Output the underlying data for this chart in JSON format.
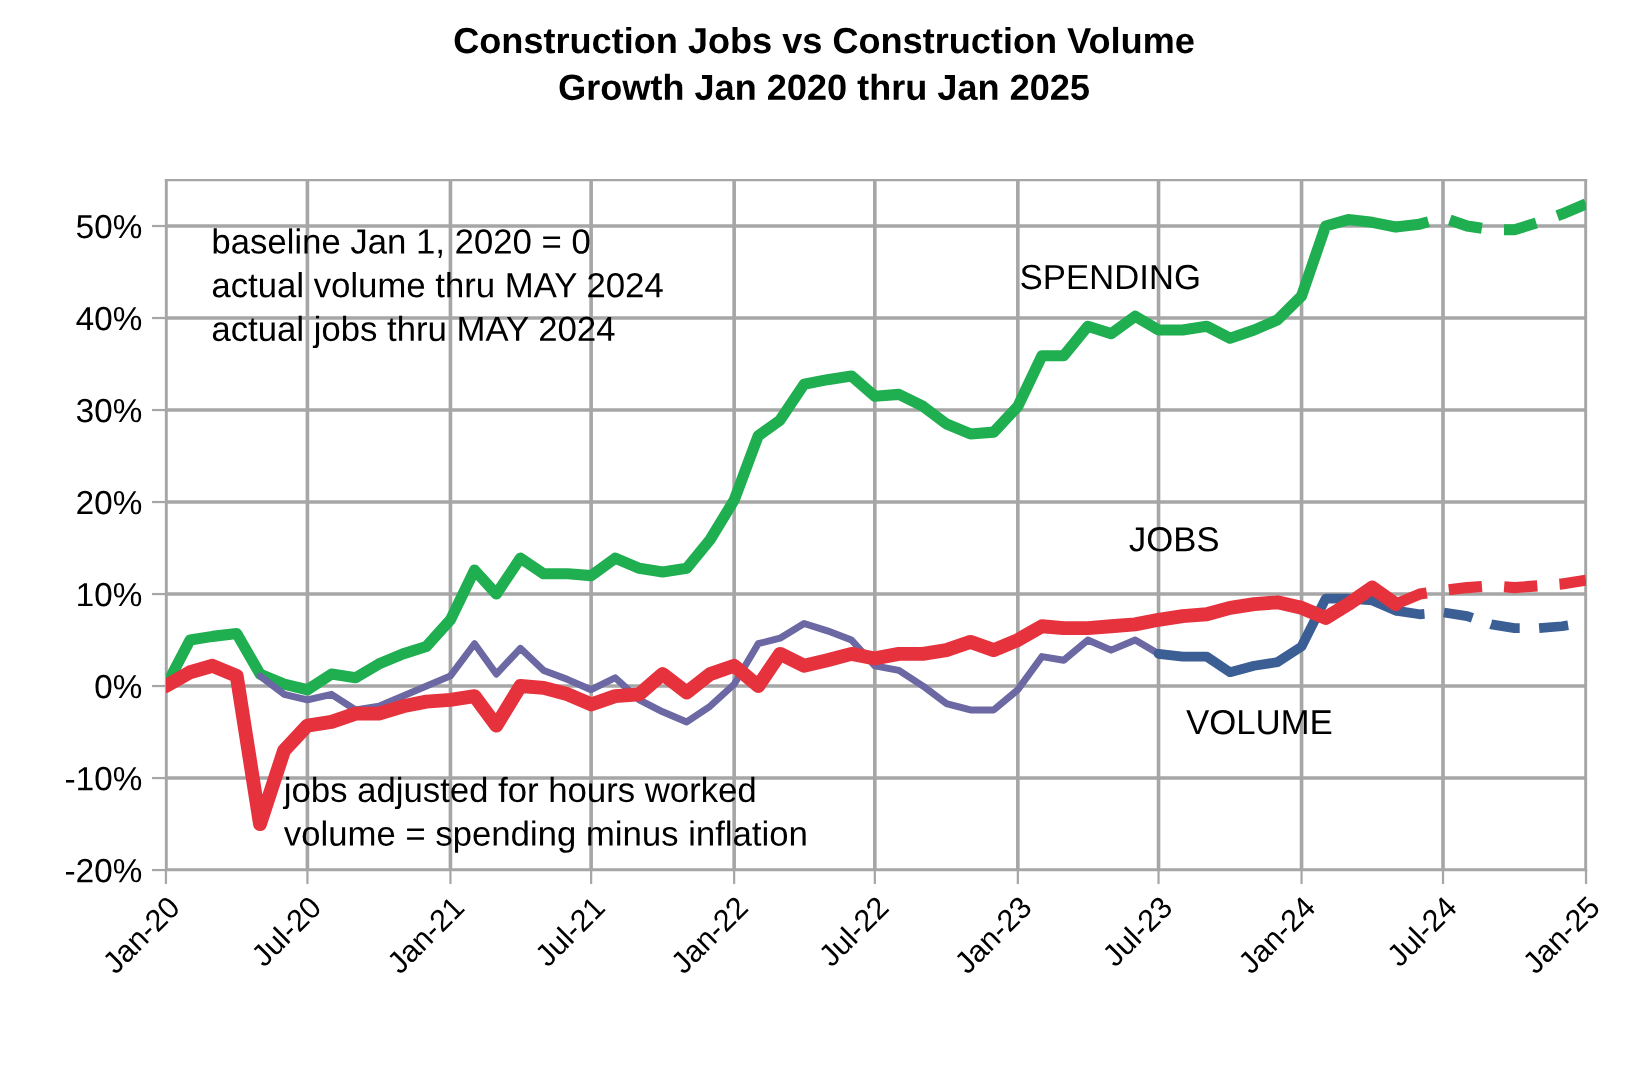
{
  "chart_data": {
    "type": "line",
    "title": "Construction Jobs vs Construction Volume\nGrowth Jan 2020 thru Jan 2025",
    "x": [
      "2020-01",
      "2020-02",
      "2020-03",
      "2020-04",
      "2020-05",
      "2020-06",
      "2020-07",
      "2020-08",
      "2020-09",
      "2020-10",
      "2020-11",
      "2020-12",
      "2021-01",
      "2021-02",
      "2021-03",
      "2021-04",
      "2021-05",
      "2021-06",
      "2021-07",
      "2021-08",
      "2021-09",
      "2021-10",
      "2021-11",
      "2021-12",
      "2022-01",
      "2022-02",
      "2022-03",
      "2022-04",
      "2022-05",
      "2022-06",
      "2022-07",
      "2022-08",
      "2022-09",
      "2022-10",
      "2022-11",
      "2022-12",
      "2023-01",
      "2023-02",
      "2023-03",
      "2023-04",
      "2023-05",
      "2023-06",
      "2023-07",
      "2023-08",
      "2023-09",
      "2023-10",
      "2023-11",
      "2023-12",
      "2024-01",
      "2024-02",
      "2024-03",
      "2024-04",
      "2024-05",
      "2024-06",
      "2024-07",
      "2024-08",
      "2024-09",
      "2024-10",
      "2024-11",
      "2024-12",
      "2025-01"
    ],
    "series": [
      {
        "name": "SPENDING",
        "color": "#1fae50",
        "line_style": "solid",
        "values": [
          0,
          5.0,
          5.4,
          5.7,
          1.3,
          0.2,
          -0.4,
          1.3,
          0.9,
          2.4,
          3.5,
          4.3,
          7.2,
          12.6,
          10.0,
          13.9,
          12.2,
          12.2,
          12.0,
          13.9,
          12.8,
          12.4,
          12.8,
          15.9,
          20.2,
          27.2,
          28.9,
          32.8,
          33.3,
          33.7,
          31.5,
          31.7,
          30.4,
          28.5,
          27.4,
          27.6,
          30.4,
          35.9,
          35.9,
          39.1,
          38.3,
          40.2,
          38.7,
          38.7,
          39.1,
          37.8,
          38.7,
          39.8,
          42.4,
          50.0,
          50.7,
          50.4,
          49.9,
          null,
          null,
          null,
          null,
          null,
          null,
          null,
          null
        ]
      },
      {
        "color": "#1fae50",
        "line_style": "dashed",
        "values": [
          null,
          null,
          null,
          null,
          null,
          null,
          null,
          null,
          null,
          null,
          null,
          null,
          null,
          null,
          null,
          null,
          null,
          null,
          null,
          null,
          null,
          null,
          null,
          null,
          null,
          null,
          null,
          null,
          null,
          null,
          null,
          null,
          null,
          null,
          null,
          null,
          null,
          null,
          null,
          null,
          null,
          null,
          null,
          null,
          null,
          null,
          null,
          null,
          null,
          null,
          null,
          null,
          49.9,
          50.2,
          50.9,
          50.0,
          49.6,
          49.6,
          50.4,
          51.3,
          52.4
        ]
      },
      {
        "color": "#6b68a3",
        "line_style": "solid",
        "values": [
          null,
          null,
          null,
          null,
          1.1,
          -0.9,
          -1.5,
          -0.9,
          -2.6,
          -2.2,
          null,
          null,
          1.1,
          4.6,
          1.3,
          4.1,
          1.7,
          0.7,
          -0.4,
          0.9,
          -1.5,
          -2.8,
          -3.9,
          -2.2,
          0.2,
          4.6,
          5.2,
          6.8,
          6.0,
          5.0,
          2.2,
          1.7,
          0,
          -1.9,
          -2.6,
          -2.6,
          -0.4,
          3.2,
          2.8,
          5.0,
          3.9,
          5.0,
          3.5,
          null,
          null,
          null,
          null,
          null,
          null,
          null,
          null,
          null,
          null,
          null,
          null,
          null,
          null,
          null,
          null,
          null,
          null
        ]
      },
      {
        "name": "VOLUME",
        "color": "#3b5e94",
        "line_style": "solid",
        "values": [
          null,
          null,
          null,
          null,
          null,
          null,
          null,
          null,
          null,
          null,
          null,
          null,
          null,
          null,
          null,
          null,
          null,
          null,
          null,
          null,
          null,
          null,
          null,
          null,
          null,
          null,
          null,
          null,
          null,
          null,
          null,
          null,
          null,
          null,
          null,
          null,
          null,
          null,
          null,
          null,
          null,
          null,
          3.5,
          3.2,
          3.2,
          1.5,
          2.2,
          2.6,
          4.3,
          9.5,
          9.5,
          9.3,
          8.2,
          null,
          null,
          null,
          null,
          null,
          null,
          null,
          null
        ]
      },
      {
        "color": "#3b5e94",
        "line_style": "dashed",
        "values": [
          null,
          null,
          null,
          null,
          null,
          null,
          null,
          null,
          null,
          null,
          null,
          null,
          null,
          null,
          null,
          null,
          null,
          null,
          null,
          null,
          null,
          null,
          null,
          null,
          null,
          null,
          null,
          null,
          null,
          null,
          null,
          null,
          null,
          null,
          null,
          null,
          null,
          null,
          null,
          null,
          null,
          null,
          null,
          null,
          null,
          null,
          null,
          null,
          null,
          null,
          null,
          null,
          8.2,
          7.8,
          8.0,
          7.6,
          6.7,
          6.3,
          6.3,
          6.5,
          6.9
        ]
      },
      {
        "name": "JOBS",
        "color": "#e5323c",
        "line_style": "solid",
        "values": [
          0,
          1.5,
          2.2,
          1.1,
          -15.0,
          -7.0,
          -4.3,
          -3.9,
          -3.0,
          -3.0,
          -2.2,
          -1.7,
          -1.5,
          -1.1,
          -4.3,
          0,
          -0.2,
          -0.9,
          -2.0,
          -1.1,
          -0.9,
          1.3,
          -0.7,
          1.3,
          2.2,
          0,
          3.5,
          2.2,
          2.8,
          3.5,
          3.0,
          3.5,
          3.5,
          3.9,
          4.8,
          3.9,
          5.0,
          6.5,
          6.3,
          6.3,
          6.5,
          6.7,
          7.2,
          7.6,
          7.8,
          8.5,
          8.9,
          9.1,
          8.5,
          7.4,
          8.9,
          10.7,
          8.9,
          null,
          null,
          null,
          null,
          null,
          null,
          null,
          null
        ]
      },
      {
        "color": "#e5323c",
        "line_style": "dashed",
        "values": [
          null,
          null,
          null,
          null,
          null,
          null,
          null,
          null,
          null,
          null,
          null,
          null,
          null,
          null,
          null,
          null,
          null,
          null,
          null,
          null,
          null,
          null,
          null,
          null,
          null,
          null,
          null,
          null,
          null,
          null,
          null,
          null,
          null,
          null,
          null,
          null,
          null,
          null,
          null,
          null,
          null,
          null,
          null,
          null,
          null,
          null,
          null,
          null,
          null,
          null,
          null,
          null,
          8.9,
          10.0,
          10.4,
          10.7,
          10.9,
          10.7,
          10.9,
          11.1,
          11.5
        ]
      }
    ],
    "xlim": [
      "2020-01",
      "2025-01"
    ],
    "xticks": [
      {
        "value": "2020-01",
        "label": "Jan-20"
      },
      {
        "value": "2020-07",
        "label": "Jul-20"
      },
      {
        "value": "2021-01",
        "label": "Jan-21"
      },
      {
        "value": "2021-07",
        "label": "Jul-21"
      },
      {
        "value": "2022-01",
        "label": "Jan-22"
      },
      {
        "value": "2022-07",
        "label": "Jul-22"
      },
      {
        "value": "2023-01",
        "label": "Jan-23"
      },
      {
        "value": "2023-07",
        "label": "Jul-23"
      },
      {
        "value": "2024-01",
        "label": "Jan-24"
      },
      {
        "value": "2024-07",
        "label": "Jul-24"
      },
      {
        "value": "2025-01",
        "label": "Jan-25"
      }
    ],
    "ylim": [
      -20,
      55
    ],
    "yticks": [
      {
        "value": -20,
        "label": "-20%"
      },
      {
        "value": -10,
        "label": "-10%"
      },
      {
        "value": 0,
        "label": "0%"
      },
      {
        "value": 10,
        "label": "10%"
      },
      {
        "value": 20,
        "label": "20%"
      },
      {
        "value": 30,
        "label": "30%"
      },
      {
        "value": 40,
        "label": "40%"
      },
      {
        "value": 50,
        "label": "50%"
      }
    ],
    "grid": true,
    "annotations": [
      "baseline Jan 1, 2020 = 0\nactual volume thru MAY 2024\nactual jobs thru MAY 2024",
      "jobs adjusted for hours worked\nvolume = spending minus inflation"
    ]
  }
}
